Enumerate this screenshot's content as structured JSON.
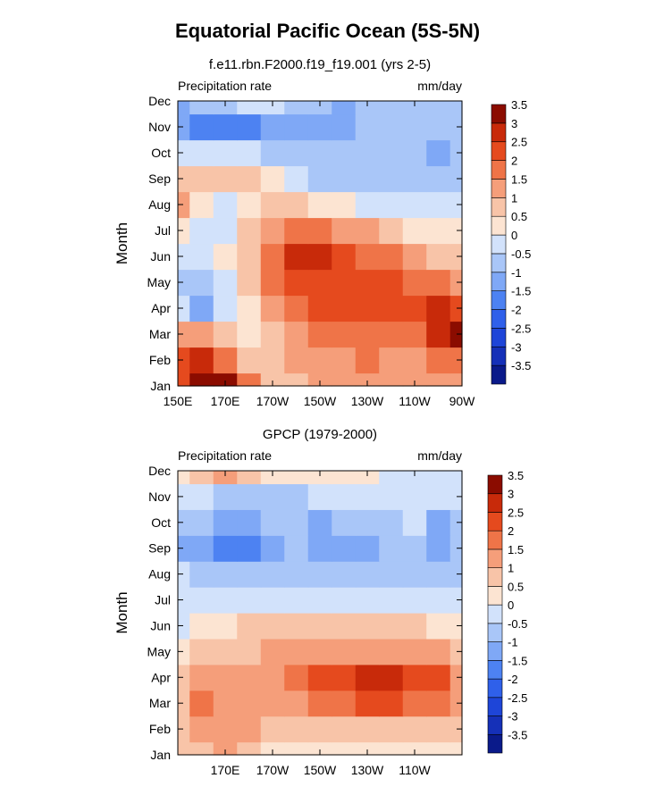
{
  "title": "Equatorial Pacific Ocean (5S-5N)",
  "colorbar": {
    "colors": [
      "#0a1a8a",
      "#1530b8",
      "#1e45d8",
      "#2f60ea",
      "#4d82f2",
      "#7fa8f6",
      "#a9c6f8",
      "#d2e2fb",
      "#fce4d2",
      "#f8c4a8",
      "#f59e7a",
      "#ef7448",
      "#e54a1e",
      "#c82a0a",
      "#8b0c00"
    ],
    "labels": [
      "-3.5",
      "-3",
      "-2.5",
      "-2",
      "-1.5",
      "-1",
      "-0.5",
      "0",
      "0.5",
      "1",
      "1.5",
      "2",
      "2.5",
      "3",
      "3.5"
    ]
  },
  "chart_data": [
    {
      "type": "heatmap",
      "title": "f.e11.rbn.F2000.f19_f19.001 (yrs 2-5)",
      "left_label": "Precipitation rate",
      "right_label": "mm/day",
      "ylabel": "Month",
      "xlabel": "",
      "x_ticks": [
        "150E",
        "170E",
        "170W",
        "150W",
        "130W",
        "110W",
        "90W"
      ],
      "y_ticks": [
        "Jan",
        "Feb",
        "Mar",
        "Apr",
        "May",
        "Jun",
        "Jul",
        "Aug",
        "Sep",
        "Oct",
        "Nov",
        "Dec"
      ],
      "x_lon": [
        150,
        160,
        170,
        180,
        190,
        200,
        210,
        220,
        230,
        240,
        250,
        260,
        270
      ],
      "months": [
        "Jan",
        "Feb",
        "Mar",
        "Apr",
        "May",
        "Jun",
        "Jul",
        "Aug",
        "Sep",
        "Oct",
        "Nov",
        "Dec"
      ],
      "values": [
        [
          2.0,
          3.5,
          3.0,
          1.5,
          0.5,
          0.5,
          1.0,
          1.0,
          1.0,
          1.0,
          1.0,
          1.0,
          1.0
        ],
        [
          2.0,
          2.5,
          1.5,
          0.5,
          0.5,
          1.0,
          1.0,
          1.0,
          1.5,
          1.0,
          1.0,
          1.5,
          1.5
        ],
        [
          1.0,
          1.0,
          0.5,
          0.0,
          0.5,
          1.0,
          1.5,
          1.5,
          1.5,
          1.5,
          1.5,
          2.5,
          3.0
        ],
        [
          -0.5,
          -1.5,
          -0.5,
          0.0,
          1.0,
          1.5,
          2.0,
          2.0,
          2.0,
          2.0,
          2.0,
          2.5,
          2.0
        ],
        [
          -1.0,
          -1.0,
          -0.5,
          0.5,
          1.5,
          2.0,
          2.0,
          2.0,
          2.0,
          2.0,
          1.5,
          1.5,
          1.0
        ],
        [
          -0.5,
          -0.5,
          0.0,
          0.5,
          1.5,
          2.5,
          2.5,
          2.0,
          1.5,
          1.5,
          1.0,
          0.5,
          0.5
        ],
        [
          0.0,
          -0.5,
          -0.5,
          0.5,
          1.0,
          1.5,
          1.5,
          1.0,
          1.0,
          0.5,
          0.0,
          0.0,
          0.0
        ],
        [
          1.0,
          0.0,
          -0.5,
          0.0,
          0.5,
          0.5,
          0.0,
          0.0,
          -0.5,
          -0.5,
          -0.5,
          -0.5,
          -0.5
        ],
        [
          0.5,
          0.5,
          0.5,
          0.5,
          0.0,
          -0.5,
          -1.0,
          -1.0,
          -1.0,
          -1.0,
          -1.0,
          -1.0,
          -1.0
        ],
        [
          -0.5,
          -0.5,
          -0.5,
          -0.5,
          -1.0,
          -1.0,
          -1.0,
          -1.0,
          -1.0,
          -1.0,
          -1.0,
          -1.5,
          -1.0
        ],
        [
          -1.5,
          -2.0,
          -2.0,
          -2.0,
          -1.5,
          -1.5,
          -1.5,
          -1.5,
          -1.0,
          -1.0,
          -1.0,
          -1.0,
          -1.0
        ],
        [
          -1.5,
          -1.0,
          -1.0,
          -0.5,
          -0.5,
          -1.0,
          -1.0,
          -1.5,
          -1.0,
          -1.0,
          -1.0,
          -1.0,
          -1.0
        ]
      ]
    },
    {
      "type": "heatmap",
      "title": "GPCP (1979-2000)",
      "left_label": "Precipitation rate",
      "right_label": "mm/day",
      "ylabel": "Month",
      "xlabel": "",
      "x_ticks": [
        "170E",
        "170W",
        "150W",
        "130W",
        "110W"
      ],
      "y_ticks": [
        "Jan",
        "Feb",
        "Mar",
        "Apr",
        "May",
        "Jun",
        "Jul",
        "Aug",
        "Sep",
        "Oct",
        "Nov",
        "Dec"
      ],
      "x_lon": [
        150,
        160,
        170,
        180,
        190,
        200,
        210,
        220,
        230,
        240,
        250,
        260,
        270
      ],
      "months": [
        "Jan",
        "Feb",
        "Mar",
        "Apr",
        "May",
        "Jun",
        "Jul",
        "Aug",
        "Sep",
        "Oct",
        "Nov",
        "Dec"
      ],
      "values": [
        [
          0.5,
          0.5,
          1.0,
          0.5,
          0.0,
          0.0,
          0.0,
          0.0,
          0.0,
          0.0,
          0.0,
          0.0,
          0.0
        ],
        [
          0.5,
          1.0,
          1.0,
          1.0,
          0.5,
          0.5,
          0.5,
          0.5,
          0.5,
          0.5,
          0.5,
          0.5,
          0.5
        ],
        [
          0.5,
          1.5,
          1.0,
          1.0,
          1.0,
          1.0,
          1.5,
          1.5,
          2.0,
          2.0,
          1.5,
          1.5,
          1.0
        ],
        [
          0.5,
          1.0,
          1.0,
          1.0,
          1.0,
          1.5,
          2.0,
          2.0,
          2.5,
          2.5,
          2.0,
          2.0,
          1.0
        ],
        [
          0.0,
          0.5,
          0.5,
          0.5,
          1.0,
          1.0,
          1.0,
          1.0,
          1.0,
          1.0,
          1.0,
          1.0,
          0.5
        ],
        [
          -0.5,
          0.0,
          0.0,
          0.5,
          0.5,
          0.5,
          0.5,
          0.5,
          0.5,
          0.5,
          0.5,
          0.0,
          0.0
        ],
        [
          -0.5,
          -0.5,
          -0.5,
          -0.5,
          -0.5,
          -0.5,
          -0.5,
          -0.5,
          -0.5,
          -0.5,
          -0.5,
          -0.5,
          -0.5
        ],
        [
          -0.5,
          -1.0,
          -1.0,
          -1.0,
          -1.0,
          -1.0,
          -1.0,
          -1.0,
          -1.0,
          -1.0,
          -1.0,
          -1.0,
          -1.0
        ],
        [
          -1.5,
          -1.5,
          -2.0,
          -2.0,
          -1.5,
          -1.0,
          -1.5,
          -1.5,
          -1.5,
          -1.0,
          -1.0,
          -1.5,
          -1.0
        ],
        [
          -1.0,
          -1.0,
          -1.5,
          -1.5,
          -1.0,
          -1.0,
          -1.5,
          -1.0,
          -1.0,
          -1.0,
          -0.5,
          -1.5,
          -1.0
        ],
        [
          -0.5,
          -0.5,
          -1.0,
          -1.0,
          -1.0,
          -1.0,
          -0.5,
          -0.5,
          -0.5,
          -0.5,
          -0.5,
          -0.5,
          -0.5
        ],
        [
          0.0,
          0.5,
          1.0,
          0.5,
          0.0,
          0.0,
          0.0,
          0.0,
          0.0,
          -0.5,
          -0.5,
          -0.5,
          -0.5
        ]
      ]
    }
  ]
}
